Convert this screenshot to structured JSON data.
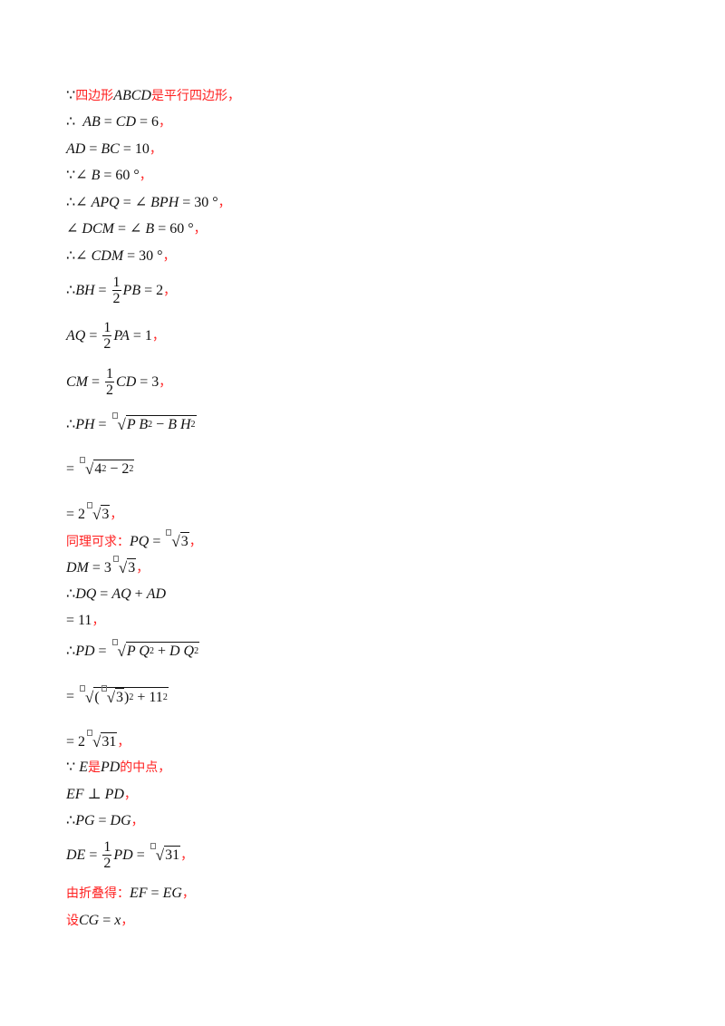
{
  "colors": {
    "text": "#111111",
    "red": "#ff1f1f"
  },
  "lines": [
    {
      "segs": [
        {
          "k": "t",
          "st": "n",
          "s": "∵"
        },
        {
          "k": "t",
          "st": "r",
          "s": "四边形"
        },
        {
          "k": "t",
          "st": "i",
          "s": "ABCD"
        },
        {
          "k": "t",
          "st": "r",
          "s": "是平行四边形，"
        }
      ]
    },
    {
      "segs": [
        {
          "k": "t",
          "st": "n",
          "s": "∴  "
        },
        {
          "k": "t",
          "st": "i",
          "s": "AB"
        },
        {
          "k": "t",
          "st": "n",
          "s": " = "
        },
        {
          "k": "t",
          "st": "i",
          "s": "CD"
        },
        {
          "k": "t",
          "st": "n",
          "s": " = 6"
        },
        {
          "k": "t",
          "st": "r",
          "s": "，"
        }
      ]
    },
    {
      "segs": [
        {
          "k": "t",
          "st": "i",
          "s": "AD"
        },
        {
          "k": "t",
          "st": "n",
          "s": " = "
        },
        {
          "k": "t",
          "st": "i",
          "s": "BC"
        },
        {
          "k": "t",
          "st": "n",
          "s": " = 10"
        },
        {
          "k": "t",
          "st": "r",
          "s": "，"
        }
      ]
    },
    {
      "segs": [
        {
          "k": "t",
          "st": "n",
          "s": "∵∠ "
        },
        {
          "k": "t",
          "st": "i",
          "s": "B"
        },
        {
          "k": "t",
          "st": "n",
          "s": " = 60 °"
        },
        {
          "k": "t",
          "st": "r",
          "s": "，"
        }
      ]
    },
    {
      "segs": [
        {
          "k": "t",
          "st": "n",
          "s": "∴∠ "
        },
        {
          "k": "t",
          "st": "i",
          "s": "APQ"
        },
        {
          "k": "t",
          "st": "n",
          "s": " = ∠ "
        },
        {
          "k": "t",
          "st": "i",
          "s": "BPH"
        },
        {
          "k": "t",
          "st": "n",
          "s": " = 30 °"
        },
        {
          "k": "t",
          "st": "r",
          "s": "，"
        }
      ]
    },
    {
      "segs": [
        {
          "k": "t",
          "st": "n",
          "s": "∠ "
        },
        {
          "k": "t",
          "st": "i",
          "s": "DCM"
        },
        {
          "k": "t",
          "st": "n",
          "s": " = ∠ "
        },
        {
          "k": "t",
          "st": "i",
          "s": "B"
        },
        {
          "k": "t",
          "st": "n",
          "s": " = 60 °"
        },
        {
          "k": "t",
          "st": "r",
          "s": "，"
        }
      ]
    },
    {
      "segs": [
        {
          "k": "t",
          "st": "n",
          "s": "∴∠ "
        },
        {
          "k": "t",
          "st": "i",
          "s": "CDM"
        },
        {
          "k": "t",
          "st": "n",
          "s": " = 30 °"
        },
        {
          "k": "t",
          "st": "r",
          "s": "，"
        }
      ]
    },
    {
      "segs": [
        {
          "k": "t",
          "st": "n",
          "s": "∴"
        },
        {
          "k": "t",
          "st": "i",
          "s": "BH"
        },
        {
          "k": "t",
          "st": "n",
          "s": " = "
        },
        {
          "k": "frac",
          "n": "1",
          "d": "2"
        },
        {
          "k": "t",
          "st": "i",
          "s": "PB"
        },
        {
          "k": "t",
          "st": "n",
          "s": " = 2"
        },
        {
          "k": "t",
          "st": "r",
          "s": "，"
        }
      ]
    },
    {
      "segs": [
        {
          "k": "t",
          "st": "i",
          "s": "AQ"
        },
        {
          "k": "t",
          "st": "n",
          "s": " = "
        },
        {
          "k": "frac",
          "n": "1",
          "d": "2"
        },
        {
          "k": "t",
          "st": "i",
          "s": "PA"
        },
        {
          "k": "t",
          "st": "n",
          "s": " = 1"
        },
        {
          "k": "t",
          "st": "r",
          "s": "，"
        }
      ]
    },
    {
      "segs": [
        {
          "k": "t",
          "st": "i",
          "s": "CM"
        },
        {
          "k": "t",
          "st": "n",
          "s": " = "
        },
        {
          "k": "frac",
          "n": "1",
          "d": "2"
        },
        {
          "k": "t",
          "st": "i",
          "s": "CD"
        },
        {
          "k": "t",
          "st": "n",
          "s": " = 3"
        },
        {
          "k": "t",
          "st": "r",
          "s": "，"
        }
      ]
    },
    {
      "segs": [
        {
          "k": "t",
          "st": "n",
          "s": "∴"
        },
        {
          "k": "t",
          "st": "i",
          "s": "PH"
        },
        {
          "k": "t",
          "st": "n",
          "s": " = "
        },
        {
          "k": "sqrt",
          "parts": [
            {
              "k": "t",
              "st": "i",
              "s": "P B"
            },
            {
              "k": "sup",
              "s": "2"
            },
            {
              "k": "t",
              "st": "n",
              "s": " − "
            },
            {
              "k": "t",
              "st": "i",
              "s": "B H"
            },
            {
              "k": "sup",
              "s": "2"
            }
          ]
        }
      ]
    },
    {
      "segs": [
        {
          "k": "t",
          "st": "n",
          "s": "= "
        },
        {
          "k": "sqrt",
          "parts": [
            {
              "k": "t",
              "st": "n",
              "s": "4"
            },
            {
              "k": "sup",
              "s": "2"
            },
            {
              "k": "t",
              "st": "n",
              "s": " − 2"
            },
            {
              "k": "sup",
              "s": "2"
            }
          ]
        }
      ]
    },
    {
      "segs": [
        {
          "k": "t",
          "st": "n",
          "s": "= 2"
        },
        {
          "k": "sqrt",
          "parts": [
            {
              "k": "t",
              "st": "n",
              "s": "3"
            }
          ]
        },
        {
          "k": "t",
          "st": "r",
          "s": "，"
        }
      ]
    },
    {
      "segs": [
        {
          "k": "t",
          "st": "r",
          "s": "同理可求："
        },
        {
          "k": "t",
          "st": "i",
          "s": "PQ"
        },
        {
          "k": "t",
          "st": "n",
          "s": " = "
        },
        {
          "k": "sqrt",
          "parts": [
            {
              "k": "t",
              "st": "n",
              "s": "3"
            }
          ]
        },
        {
          "k": "t",
          "st": "r",
          "s": "，"
        }
      ]
    },
    {
      "segs": [
        {
          "k": "t",
          "st": "i",
          "s": "DM"
        },
        {
          "k": "t",
          "st": "n",
          "s": " = 3"
        },
        {
          "k": "sqrt",
          "parts": [
            {
              "k": "t",
              "st": "n",
              "s": "3"
            }
          ]
        },
        {
          "k": "t",
          "st": "r",
          "s": "，"
        }
      ]
    },
    {
      "segs": [
        {
          "k": "t",
          "st": "n",
          "s": "∴"
        },
        {
          "k": "t",
          "st": "i",
          "s": "DQ"
        },
        {
          "k": "t",
          "st": "n",
          "s": " = "
        },
        {
          "k": "t",
          "st": "i",
          "s": "AQ"
        },
        {
          "k": "t",
          "st": "n",
          "s": " + "
        },
        {
          "k": "t",
          "st": "i",
          "s": "AD"
        }
      ]
    },
    {
      "segs": [
        {
          "k": "t",
          "st": "n",
          "s": "= 11"
        },
        {
          "k": "t",
          "st": "r",
          "s": "，"
        }
      ]
    },
    {
      "segs": [
        {
          "k": "t",
          "st": "n",
          "s": "∴"
        },
        {
          "k": "t",
          "st": "i",
          "s": "PD"
        },
        {
          "k": "t",
          "st": "n",
          "s": " = "
        },
        {
          "k": "sqrt",
          "parts": [
            {
              "k": "t",
              "st": "i",
              "s": "P Q"
            },
            {
              "k": "sup",
              "s": "2"
            },
            {
              "k": "t",
              "st": "n",
              "s": " + "
            },
            {
              "k": "t",
              "st": "i",
              "s": "D Q"
            },
            {
              "k": "sup",
              "s": "2"
            }
          ]
        }
      ]
    },
    {
      "segs": [
        {
          "k": "t",
          "st": "n",
          "s": "= "
        },
        {
          "k": "sqrt",
          "parts": [
            {
              "k": "t",
              "st": "n",
              "s": "("
            },
            {
              "k": "sqrt",
              "parts": [
                {
                  "k": "t",
                  "st": "n",
                  "s": "3"
                }
              ]
            },
            {
              "k": "t",
              "st": "n",
              "s": ")"
            },
            {
              "k": "sup",
              "s": "2"
            },
            {
              "k": "t",
              "st": "n",
              "s": " + 11"
            },
            {
              "k": "sup",
              "s": "2"
            }
          ]
        }
      ]
    },
    {
      "segs": [
        {
          "k": "t",
          "st": "n",
          "s": "= 2"
        },
        {
          "k": "sqrt",
          "parts": [
            {
              "k": "t",
              "st": "n",
              "s": "31"
            }
          ]
        },
        {
          "k": "t",
          "st": "r",
          "s": "，"
        }
      ]
    },
    {
      "segs": [
        {
          "k": "t",
          "st": "n",
          "s": "∵ "
        },
        {
          "k": "t",
          "st": "i",
          "s": "E"
        },
        {
          "k": "t",
          "st": "r",
          "s": "是"
        },
        {
          "k": "t",
          "st": "i",
          "s": "PD"
        },
        {
          "k": "t",
          "st": "r",
          "s": "的中点，"
        }
      ]
    },
    {
      "segs": [
        {
          "k": "t",
          "st": "i",
          "s": "EF"
        },
        {
          "k": "t",
          "st": "n",
          "s": " ⊥ "
        },
        {
          "k": "t",
          "st": "i",
          "s": "PD"
        },
        {
          "k": "t",
          "st": "r",
          "s": "，"
        }
      ]
    },
    {
      "segs": [
        {
          "k": "t",
          "st": "n",
          "s": "∴"
        },
        {
          "k": "t",
          "st": "i",
          "s": "PG"
        },
        {
          "k": "t",
          "st": "n",
          "s": " = "
        },
        {
          "k": "t",
          "st": "i",
          "s": "DG"
        },
        {
          "k": "t",
          "st": "r",
          "s": "，"
        }
      ]
    },
    {
      "segs": [
        {
          "k": "t",
          "st": "i",
          "s": "DE"
        },
        {
          "k": "t",
          "st": "n",
          "s": " = "
        },
        {
          "k": "frac",
          "n": "1",
          "d": "2"
        },
        {
          "k": "t",
          "st": "i",
          "s": "PD"
        },
        {
          "k": "t",
          "st": "n",
          "s": " = "
        },
        {
          "k": "sqrt",
          "parts": [
            {
              "k": "t",
              "st": "n",
              "s": "31"
            }
          ]
        },
        {
          "k": "t",
          "st": "r",
          "s": "，"
        }
      ]
    },
    {
      "segs": [
        {
          "k": "t",
          "st": "r",
          "s": "由折叠得："
        },
        {
          "k": "t",
          "st": "i",
          "s": "EF"
        },
        {
          "k": "t",
          "st": "n",
          "s": " = "
        },
        {
          "k": "t",
          "st": "i",
          "s": "EG"
        },
        {
          "k": "t",
          "st": "r",
          "s": "，"
        }
      ]
    },
    {
      "segs": [
        {
          "k": "t",
          "st": "r",
          "s": "设"
        },
        {
          "k": "t",
          "st": "i",
          "s": "CG"
        },
        {
          "k": "t",
          "st": "n",
          "s": " = "
        },
        {
          "k": "t",
          "st": "i",
          "s": "x"
        },
        {
          "k": "t",
          "st": "r",
          "s": "，"
        }
      ]
    }
  ]
}
